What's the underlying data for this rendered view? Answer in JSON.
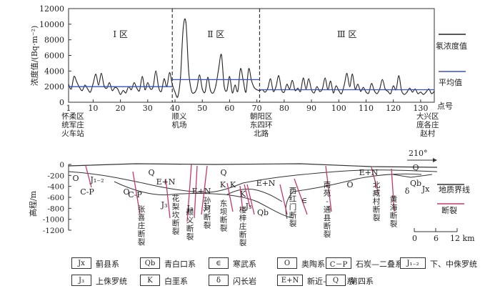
{
  "chart_data": [
    {
      "type": "line",
      "ylabel": "浓度值/(Bq·m⁻²)",
      "xlabel": "点号",
      "ylim": [
        0,
        12000
      ],
      "xlim": [
        1,
        135
      ],
      "y_ticks": [
        "0",
        "2000",
        "4000",
        "6000",
        "8000",
        "10000",
        "12000"
      ],
      "x_ticks": [
        "1",
        "10",
        "20",
        "30",
        "40",
        "50",
        "60",
        "70",
        "80",
        "90",
        "100",
        "110",
        "120",
        "130"
      ],
      "zones": [
        {
          "label": "Ⅰ 区",
          "x_from": 1,
          "x_to": 39
        },
        {
          "label": "Ⅱ 区",
          "x_from": 39,
          "x_to": 71
        },
        {
          "label": "Ⅲ 区",
          "x_from": 71,
          "x_to": 135
        }
      ],
      "zone_dividers_x": [
        39,
        71
      ],
      "series": [
        {
          "name": "氡浓度值",
          "color": "#222222",
          "points": [
            [
              1,
              2300
            ],
            [
              2,
              1700
            ],
            [
              3,
              3300
            ],
            [
              4,
              2600
            ],
            [
              5,
              1900
            ],
            [
              6,
              1500
            ],
            [
              7,
              2200
            ],
            [
              8,
              1700
            ],
            [
              9,
              1300
            ],
            [
              10,
              2400
            ],
            [
              11,
              3600
            ],
            [
              12,
              2200
            ],
            [
              13,
              3700
            ],
            [
              14,
              2100
            ],
            [
              15,
              1800
            ],
            [
              16,
              2500
            ],
            [
              17,
              1500
            ],
            [
              18,
              1900
            ],
            [
              19,
              1700
            ],
            [
              20,
              1000
            ],
            [
              21,
              1500
            ],
            [
              22,
              1200
            ],
            [
              23,
              2000
            ],
            [
              24,
              1600
            ],
            [
              25,
              2500
            ],
            [
              26,
              1800
            ],
            [
              27,
              1500
            ],
            [
              28,
              3300
            ],
            [
              29,
              1600
            ],
            [
              30,
              2500
            ],
            [
              31,
              1700
            ],
            [
              32,
              2000
            ],
            [
              33,
              4000
            ],
            [
              34,
              1900
            ],
            [
              35,
              1400
            ],
            [
              36,
              3000
            ],
            [
              37,
              2000
            ],
            [
              38,
              3800
            ],
            [
              39,
              2300
            ],
            [
              40,
              1300
            ],
            [
              41,
              700
            ],
            [
              42,
              3200
            ],
            [
              43,
              9500
            ],
            [
              44,
              10200
            ],
            [
              45,
              4000
            ],
            [
              46,
              1500
            ],
            [
              47,
              1200
            ],
            [
              48,
              1800
            ],
            [
              49,
              3500
            ],
            [
              50,
              1700
            ],
            [
              51,
              1300
            ],
            [
              52,
              3200
            ],
            [
              53,
              1500
            ],
            [
              54,
              1200
            ],
            [
              55,
              2200
            ],
            [
              56,
              4300
            ],
            [
              57,
              6100
            ],
            [
              58,
              2100
            ],
            [
              59,
              1500
            ],
            [
              60,
              3300
            ],
            [
              61,
              1200
            ],
            [
              62,
              2200
            ],
            [
              63,
              1400
            ],
            [
              64,
              4300
            ],
            [
              65,
              2800
            ],
            [
              66,
              1300
            ],
            [
              67,
              4300
            ],
            [
              68,
              2800
            ],
            [
              69,
              1900
            ],
            [
              70,
              1600
            ],
            [
              71,
              1500
            ],
            [
              72,
              1600
            ],
            [
              73,
              1300
            ],
            [
              74,
              1800
            ],
            [
              75,
              3000
            ],
            [
              76,
              1400
            ],
            [
              77,
              2000
            ],
            [
              78,
              3400
            ],
            [
              79,
              1600
            ],
            [
              80,
              1300
            ],
            [
              81,
              2300
            ],
            [
              82,
              1700
            ],
            [
              83,
              2800
            ],
            [
              84,
              1500
            ],
            [
              85,
              1800
            ],
            [
              86,
              1400
            ],
            [
              87,
              3100
            ],
            [
              88,
              1700
            ],
            [
              89,
              3000
            ],
            [
              90,
              1600
            ],
            [
              91,
              1200
            ],
            [
              92,
              2000
            ],
            [
              93,
              1400
            ],
            [
              94,
              1700
            ],
            [
              95,
              3100
            ],
            [
              96,
              1600
            ],
            [
              97,
              2700
            ],
            [
              98,
              1200
            ],
            [
              99,
              2100
            ],
            [
              100,
              1500
            ],
            [
              101,
              1100
            ],
            [
              102,
              2200
            ],
            [
              103,
              3700
            ],
            [
              104,
              2000
            ],
            [
              105,
              3600
            ],
            [
              106,
              1700
            ],
            [
              107,
              2300
            ],
            [
              108,
              1400
            ],
            [
              109,
              1900
            ],
            [
              110,
              1300
            ],
            [
              111,
              1200
            ],
            [
              112,
              2400
            ],
            [
              113,
              1500
            ],
            [
              114,
              1100
            ],
            [
              115,
              1700
            ],
            [
              116,
              2900
            ],
            [
              117,
              1700
            ],
            [
              118,
              1400
            ],
            [
              119,
              1100
            ],
            [
              120,
              2100
            ],
            [
              121,
              1600
            ],
            [
              122,
              3400
            ],
            [
              123,
              1500
            ],
            [
              124,
              1000
            ],
            [
              125,
              1300
            ],
            [
              126,
              1800
            ],
            [
              127,
              1300
            ],
            [
              128,
              1700
            ],
            [
              129,
              1100
            ],
            [
              130,
              1300
            ],
            [
              131,
              1000
            ],
            [
              132,
              1300
            ],
            [
              133,
              1700
            ],
            [
              134,
              1100
            ],
            [
              135,
              1400
            ]
          ]
        },
        {
          "name": "平均值",
          "color": "#3a4fc4",
          "segments": [
            {
              "x_from": 1,
              "x_to": 39,
              "value": 2000
            },
            {
              "x_from": 39,
              "x_to": 71,
              "value": 2900
            },
            {
              "x_from": 71,
              "x_to": 135,
              "value": 1600
            }
          ]
        }
      ],
      "location_labels": [
        {
          "x": 1,
          "lines": [
            "怀柔区",
            "统军庄",
            "火车站"
          ]
        },
        {
          "x": 40,
          "lines": [
            "顺义",
            "机场"
          ]
        },
        {
          "x": 70,
          "lines": [
            "朝阳区",
            "东四环",
            "北路"
          ]
        },
        {
          "x": 131,
          "lines": [
            "大兴区",
            "庞各庄",
            "赵村"
          ]
        }
      ]
    },
    {
      "type": "diagram",
      "ylabel": "高程/m",
      "ylim": [
        -1200,
        0
      ],
      "y_ticks": [
        "0",
        "-200",
        "-400",
        "-600",
        "-800",
        "-1000",
        "-1200"
      ],
      "direction_label": "210°",
      "scale": {
        "ticks": [
          "0",
          "6",
          "12 km"
        ],
        "range_km": [
          0,
          12
        ]
      },
      "unit_labels": [
        {
          "text": "O"
        },
        {
          "text": "J₁₋₂"
        },
        {
          "text": "C-P"
        },
        {
          "text": "O"
        },
        {
          "text": "C-P"
        },
        {
          "text": "Q"
        },
        {
          "text": "E+N"
        },
        {
          "text": "E+N"
        },
        {
          "text": "J₃"
        },
        {
          "text": "J₃"
        },
        {
          "text": "J₃"
        },
        {
          "text": "Q"
        },
        {
          "text": "K"
        },
        {
          "text": "K"
        },
        {
          "text": "K"
        },
        {
          "text": "J₃"
        },
        {
          "text": "E+N"
        },
        {
          "text": "Qb"
        },
        {
          "text": "∈"
        },
        {
          "text": "O"
        },
        {
          "text": "E+N"
        },
        {
          "text": "Q"
        },
        {
          "text": "Qb"
        },
        {
          "text": "δ"
        },
        {
          "text": "Jx"
        }
      ],
      "fault_labels": [
        {
          "lines": [
            "张",
            "喜",
            "庄",
            "断",
            "裂"
          ]
        },
        {
          "lines": [
            "花",
            "梨",
            "坎",
            "断",
            "裂"
          ]
        },
        {
          "lines": [
            "孙",
            "河",
            "断",
            "裂"
          ]
        },
        {
          "lines": [
            "顺",
            "义",
            "断",
            "裂"
          ]
        },
        {
          "lines": [
            "东",
            "坝",
            "断",
            "裂"
          ]
        },
        {
          "lines": [
            "楼",
            "梓",
            "庄",
            "断",
            "裂"
          ]
        },
        {
          "lines": [
            "西",
            "红",
            "门",
            "断",
            "裂"
          ]
        },
        {
          "lines": [
            "南",
            "苑",
            "-",
            "通",
            "县",
            "断",
            "裂"
          ]
        },
        {
          "lines": [
            "北",
            "臧",
            "村",
            "断",
            "裂"
          ]
        },
        {
          "lines": [
            "黄",
            "海",
            "断",
            "裂"
          ]
        }
      ],
      "legend": [
        {
          "name": "地质界线",
          "color": "#333333"
        },
        {
          "name": "断裂",
          "color": "#c4386e"
        }
      ]
    }
  ],
  "legend_table": [
    {
      "symbol": "Jx",
      "label": "蓟县系"
    },
    {
      "symbol": "Qb",
      "label": "青白口系"
    },
    {
      "symbol": "∈",
      "label": "寒武系"
    },
    {
      "symbol": "O",
      "label": "奥陶系"
    },
    {
      "symbol": "C－P",
      "label": "石炭—二叠系"
    },
    {
      "symbol": "J₁₋₂",
      "label": "下、中侏罗统"
    },
    {
      "symbol": "J₃",
      "label": "上侏罗统"
    },
    {
      "symbol": "K",
      "label": "白垩系"
    },
    {
      "symbol": "δ",
      "label": "闪长岩"
    },
    {
      "symbol": "E+N",
      "label": "新近—古近系"
    },
    {
      "symbol": "Q",
      "label": "第四系"
    }
  ]
}
